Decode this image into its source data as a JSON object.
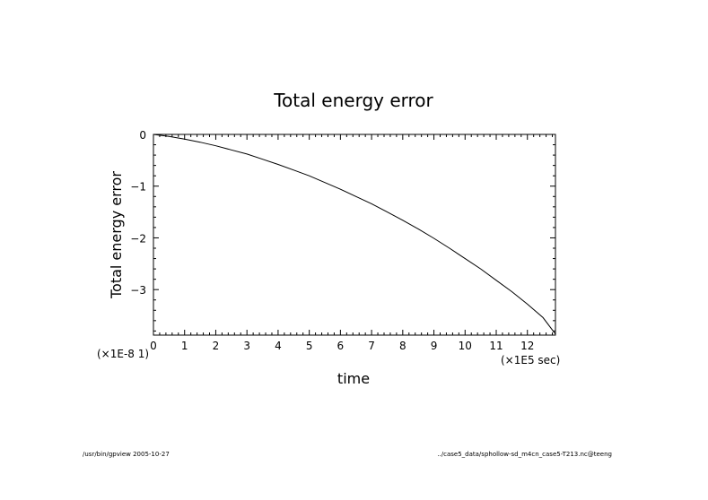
{
  "chart_data": {
    "type": "line",
    "title": "Total energy error",
    "xlabel": "time",
    "ylabel": "Total energy error",
    "x_unit_label": "(×1E5 sec)",
    "y_unit_label": "(×1E-8 1)",
    "xlim": [
      0,
      12.9
    ],
    "ylim": [
      -3.88,
      0
    ],
    "xticks": [
      0,
      1,
      2,
      3,
      4,
      5,
      6,
      7,
      8,
      9,
      10,
      11,
      12
    ],
    "xtick_labels": [
      "0",
      "1",
      "2",
      "3",
      "4",
      "5",
      "6",
      "7",
      "8",
      "9",
      "10",
      "11",
      "12"
    ],
    "yticks": [
      0,
      -1,
      -2,
      -3
    ],
    "ytick_labels": [
      "0",
      "−1",
      "−2",
      "−3"
    ],
    "grid": false,
    "series": [
      {
        "x": [
          0,
          0.5,
          1,
          1.5,
          2,
          2.5,
          3,
          3.5,
          4,
          4.5,
          5,
          5.5,
          6,
          6.5,
          7,
          7.5,
          8,
          8.5,
          9,
          9.5,
          10,
          10.5,
          11,
          11.5,
          12,
          12.5,
          12.9
        ],
        "y": [
          0,
          -0.04,
          -0.09,
          -0.15,
          -0.22,
          -0.3,
          -0.38,
          -0.48,
          -0.58,
          -0.69,
          -0.8,
          -0.93,
          -1.06,
          -1.2,
          -1.34,
          -1.5,
          -1.66,
          -1.83,
          -2.01,
          -2.2,
          -2.4,
          -2.6,
          -2.82,
          -3.04,
          -3.28,
          -3.54,
          -3.86
        ],
        "color": "#000000"
      }
    ]
  },
  "footer": {
    "left": "/usr/bin/gpview  2005-10-27",
    "right": "../case5_data/sphollow-sd_m4cn_case5-T213.nc@teeng"
  }
}
